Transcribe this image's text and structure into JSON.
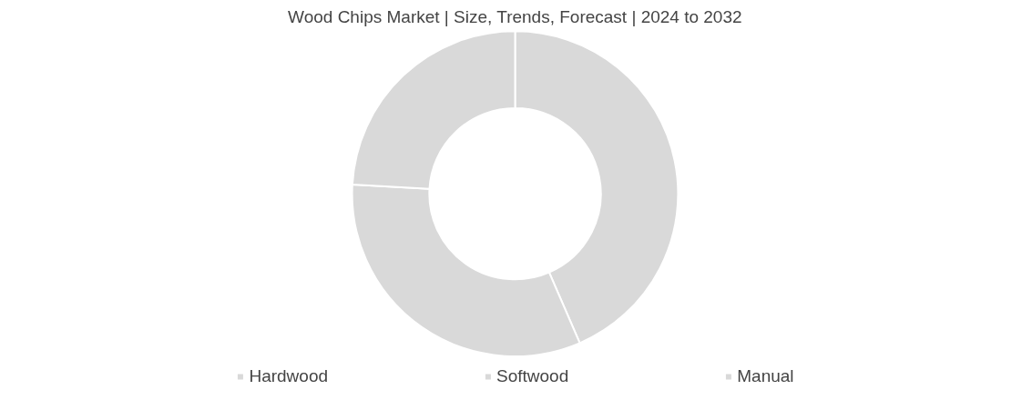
{
  "chart_data": {
    "type": "donut",
    "title": "Wood Chips Market | Size, Trends, Forecast | 2024 to 2032",
    "categories": [
      "Hardwood",
      "Softwood",
      "Manual"
    ],
    "values": [
      43.5,
      32.4,
      24.1
    ],
    "colors": [
      "#d9d9d9",
      "#d9d9d9",
      "#d9d9d9"
    ],
    "legend": "bottom"
  }
}
